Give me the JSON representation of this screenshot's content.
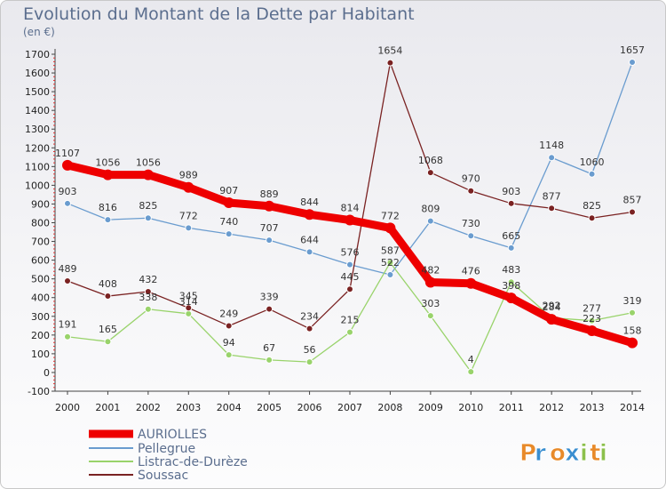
{
  "chart_data": {
    "type": "line",
    "title": "Evolution du Montant de la Dette par Habitant",
    "subtitle": "(en €)",
    "x": [
      2000,
      2001,
      2002,
      2003,
      2004,
      2005,
      2006,
      2007,
      2008,
      2009,
      2010,
      2011,
      2012,
      2013,
      2014
    ],
    "y_ticks": [
      -100,
      0,
      100,
      200,
      300,
      400,
      500,
      600,
      700,
      800,
      900,
      1000,
      1100,
      1200,
      1300,
      1400,
      1500,
      1600,
      1700
    ],
    "ylim": [
      -100,
      1700
    ],
    "grid": false,
    "legend_position": "bottom-left",
    "series": [
      {
        "name": "AURIOLLES",
        "color": "#ee0000",
        "values": [
          1107,
          1056,
          1056,
          989,
          907,
          889,
          844,
          814,
          772,
          482,
          476,
          398,
          284,
          223,
          158
        ]
      },
      {
        "name": "Pellegrue",
        "color": "#6a9ccf",
        "values": [
          903,
          816,
          825,
          772,
          740,
          707,
          644,
          576,
          522,
          809,
          730,
          665,
          1148,
          1060,
          1657
        ]
      },
      {
        "name": "Listrac-de-Durèze",
        "color": "#99d36b",
        "values": [
          191,
          165,
          338,
          314,
          94,
          67,
          56,
          215,
          587,
          303,
          4,
          483,
          292,
          277,
          319
        ]
      },
      {
        "name": "Soussac",
        "color": "#7a2222",
        "values": [
          489,
          408,
          432,
          345,
          249,
          339,
          234,
          445,
          1654,
          1068,
          970,
          903,
          877,
          825,
          857
        ]
      }
    ]
  },
  "brand": {
    "letters": [
      "P",
      "r",
      "o",
      "x",
      "i",
      "t",
      "i"
    ],
    "colors": [
      "#e88a2a",
      "#3a8ed0",
      "#e88a2a",
      "#3a8ed0",
      "#8cc04c",
      "#e88a2a",
      "#8cc04c"
    ]
  }
}
